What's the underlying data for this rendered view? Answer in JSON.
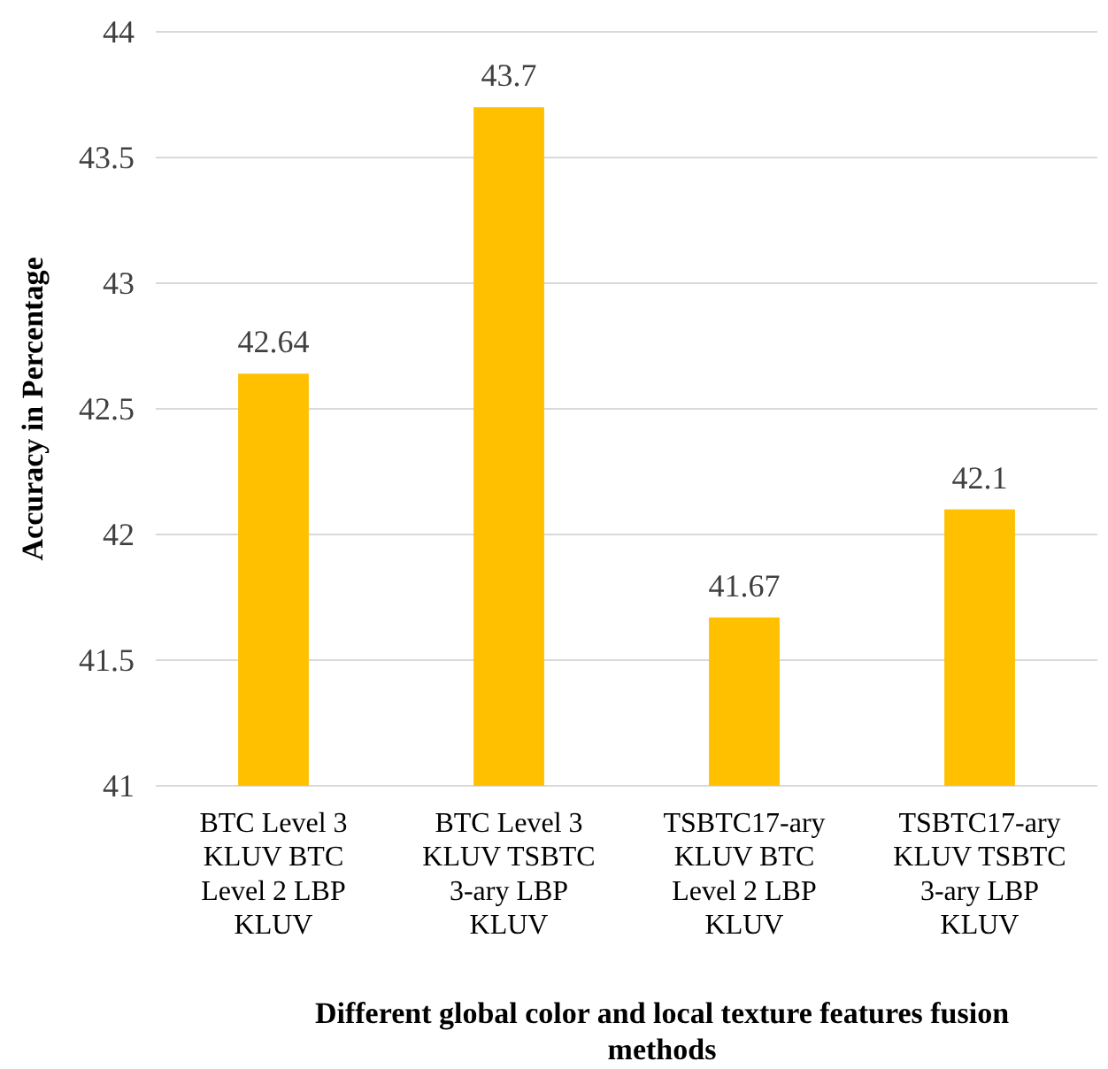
{
  "chart_data": {
    "type": "bar",
    "xlabel": "Different global color and local texture features fusion methods",
    "ylabel": "Accuracy in Percentage",
    "categories": [
      "BTC Level 3 KLUV BTC Level 2 LBP KLUV",
      "BTC Level 3 KLUV TSBTC 3-ary LBP KLUV",
      "TSBTC17-ary KLUV BTC Level 2 LBP KLUV",
      "TSBTC17-ary KLUV TSBTC 3-ary LBP KLUV"
    ],
    "values": [
      42.64,
      43.7,
      41.67,
      42.1
    ],
    "color": "#ffc000",
    "ylim": [
      41,
      44
    ],
    "yticks": [
      41,
      41.5,
      42,
      42.5,
      43,
      43.5,
      44
    ],
    "grid": "y",
    "data_labels": true
  }
}
